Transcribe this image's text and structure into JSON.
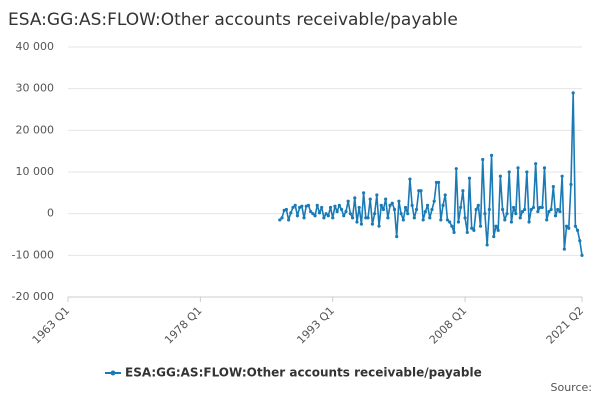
{
  "chart_data": {
    "type": "line",
    "title": "ESA:GG:AS:FLOW:Other accounts receivable/payable",
    "source": "Source:",
    "categories": [
      "1963 Q1",
      null,
      null,
      null,
      null,
      null,
      null,
      null,
      null,
      null,
      null,
      null,
      null,
      null,
      null,
      null,
      null,
      null,
      null,
      null,
      null,
      null,
      null,
      null,
      null,
      null,
      null,
      null,
      null,
      null,
      null,
      null,
      null,
      null,
      null,
      null,
      null,
      null,
      null,
      null,
      null,
      null,
      null,
      null,
      null,
      null,
      null,
      null,
      null,
      null,
      null,
      null,
      null,
      null,
      null,
      null,
      null,
      null,
      null,
      null,
      "1978 Q1",
      null,
      null,
      null,
      null,
      null,
      null,
      null,
      null,
      null,
      null,
      null,
      null,
      null,
      null,
      null,
      null,
      null,
      null,
      null,
      null,
      null,
      null,
      null,
      null,
      null,
      null,
      null,
      null,
      null,
      null,
      null,
      null,
      null,
      null,
      null,
      null,
      null,
      null,
      null,
      null,
      null,
      null,
      null,
      null,
      null,
      null,
      null,
      null,
      null,
      null,
      null,
      null,
      null,
      null,
      null,
      null,
      null,
      null,
      null,
      "1993 Q1",
      null,
      null,
      null,
      null,
      null,
      null,
      null,
      null,
      null,
      null,
      null,
      null,
      null,
      null,
      null,
      null,
      null,
      null,
      null,
      null,
      null,
      null,
      null,
      null,
      null,
      null,
      null,
      null,
      null,
      null,
      null,
      null,
      null,
      null,
      null,
      null,
      null,
      null,
      null,
      null,
      null,
      null,
      null,
      null,
      null,
      null,
      null,
      null,
      null,
      null,
      null,
      null,
      null,
      null,
      null,
      null,
      null,
      null,
      null,
      "2008 Q1",
      null,
      null,
      null,
      null,
      null,
      null,
      null,
      null,
      null,
      null,
      null,
      null,
      null,
      null,
      null,
      null,
      null,
      null,
      null,
      null,
      null,
      null,
      null,
      null,
      null,
      null,
      null,
      null,
      null,
      null,
      null,
      null,
      null,
      null,
      null,
      null,
      null,
      null,
      null,
      null,
      null,
      null,
      null,
      null,
      null,
      null,
      null,
      null,
      null,
      null,
      null,
      null,
      "2021 Q2"
    ],
    "series": [
      {
        "name": "ESA:GG:AS:FLOW:Other accounts receivable/payable",
        "color": "#1a7ab5",
        "values": [
          null,
          null,
          null,
          null,
          null,
          null,
          null,
          null,
          null,
          null,
          null,
          null,
          null,
          null,
          null,
          null,
          null,
          null,
          null,
          null,
          null,
          null,
          null,
          null,
          null,
          null,
          null,
          null,
          null,
          null,
          null,
          null,
          null,
          null,
          null,
          null,
          null,
          null,
          null,
          null,
          null,
          null,
          null,
          null,
          null,
          null,
          null,
          null,
          null,
          null,
          null,
          null,
          null,
          null,
          null,
          null,
          null,
          null,
          null,
          null,
          null,
          null,
          null,
          null,
          null,
          null,
          null,
          null,
          null,
          null,
          null,
          null,
          null,
          null,
          null,
          null,
          null,
          null,
          null,
          null,
          null,
          null,
          null,
          null,
          null,
          null,
          null,
          null,
          null,
          null,
          null,
          null,
          null,
          null,
          null,
          null,
          -1500,
          -1000,
          800,
          1000,
          -1500,
          200,
          1500,
          2000,
          -500,
          1500,
          1800,
          -1000,
          1800,
          2000,
          500,
          0,
          -500,
          2000,
          200,
          1500,
          -1000,
          0,
          -500,
          1500,
          -1000,
          1800,
          500,
          2000,
          1000,
          -500,
          500,
          3000,
          0,
          -1000,
          3800,
          -2000,
          1500,
          -2500,
          5000,
          -1000,
          -1000,
          3500,
          -2500,
          0,
          4500,
          -3000,
          2000,
          1000,
          3500,
          -1000,
          2000,
          2500,
          1000,
          -5500,
          3000,
          0,
          -1500,
          1500,
          0,
          8300,
          2000,
          -1000,
          1000,
          5500,
          5500,
          -1500,
          500,
          2000,
          -1000,
          1000,
          3000,
          7500,
          7500,
          -1500,
          2000,
          4500,
          -1500,
          -2000,
          -3000,
          -4500,
          10800,
          -2000,
          1500,
          5500,
          -1000,
          -4500,
          8500,
          -3500,
          -4000,
          1000,
          2000,
          -3000,
          13000,
          0,
          -7500,
          1000,
          14000,
          -5500,
          -3000,
          -4000,
          9000,
          1000,
          -1500,
          0,
          10000,
          -2000,
          1500,
          0,
          11000,
          -1000,
          500,
          1000,
          10000,
          -2000,
          1000,
          1500,
          12000,
          500,
          1500,
          1500,
          11000,
          -1500,
          500,
          1000,
          6500,
          -500,
          1000,
          500,
          9000,
          -8500,
          -3000,
          -3500,
          7000,
          29000,
          -3000,
          -4000,
          -6500,
          -10000
        ]
      }
    ],
    "ylim": [
      -20000,
      40000
    ],
    "yticks": [
      {
        "value": -20000,
        "label": "-20 000"
      },
      {
        "value": -10000,
        "label": "-10 000"
      },
      0,
      {
        "value": 10000,
        "label": "10 000"
      },
      {
        "value": 20000,
        "label": "20 000"
      },
      {
        "value": 30000,
        "label": "30 000"
      },
      {
        "value": 40000,
        "label": "40 000"
      }
    ],
    "grid": true
  }
}
